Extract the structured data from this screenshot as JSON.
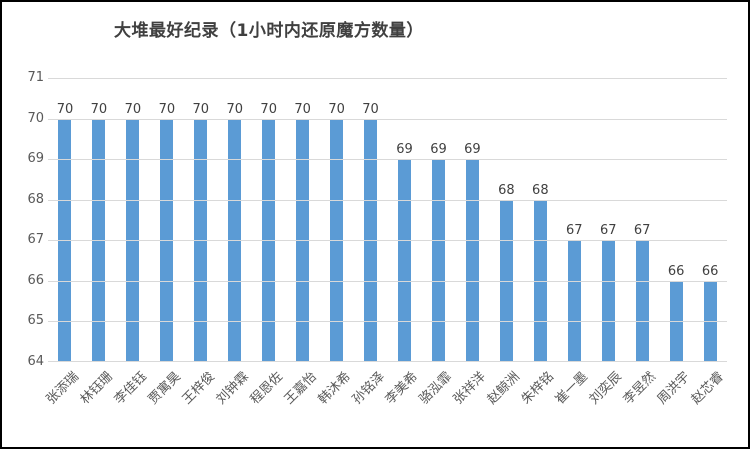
{
  "chart_data": {
    "type": "bar",
    "title": "大堆最好纪录（1小时内还原魔方数量）",
    "categories": [
      "张添瑞",
      "林钰珊",
      "李佳钰",
      "贾寓昊",
      "王梓俊",
      "刘钟霖",
      "程恩佐",
      "王嘉怡",
      "韩沐希",
      "孙铭泽",
      "李美希",
      "骆泓霏",
      "张祥洋",
      "赵鲸洲",
      "朱梓铭",
      "崔一墨",
      "刘奕辰",
      "李昱然",
      "周洪宇",
      "赵芯睿"
    ],
    "values": [
      70,
      70,
      70,
      70,
      70,
      70,
      70,
      70,
      70,
      70,
      69,
      69,
      69,
      68,
      68,
      67,
      67,
      67,
      66,
      66
    ],
    "xlabel": "",
    "ylabel": "",
    "ylim": [
      64,
      71
    ],
    "yticks": [
      64,
      65,
      66,
      67,
      68,
      69,
      70,
      71
    ],
    "grid": "horizontal",
    "legend_position": "none",
    "data_labels": "above-bars",
    "colors": {
      "bar": "#5b9bd5",
      "gridline": "#d9d9d9",
      "axis_tick_label": "#595959",
      "value_label": "#404040",
      "title": "#404040",
      "frame_border": "#000000",
      "background": "#ffffff"
    }
  }
}
